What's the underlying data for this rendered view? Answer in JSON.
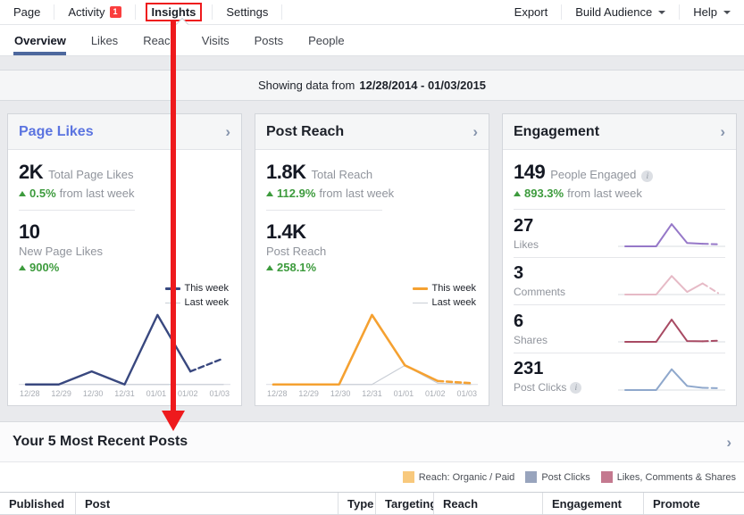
{
  "nav": {
    "items": [
      {
        "label": "Page"
      },
      {
        "label": "Activity",
        "badge": "1"
      },
      {
        "label": "Insights"
      },
      {
        "label": "Settings"
      }
    ],
    "export_label": "Export",
    "build_audience_label": "Build Audience",
    "help_label": "Help"
  },
  "tabs": {
    "items": [
      "Overview",
      "Likes",
      "Reach",
      "Visits",
      "Posts",
      "People"
    ],
    "active": "Overview"
  },
  "date_bar": {
    "prefix": "Showing data from",
    "range": "12/28/2014 - 01/03/2015"
  },
  "cards": {
    "page_likes": {
      "title": "Page Likes",
      "total": {
        "value": "2K",
        "label": "Total Page Likes",
        "delta": "0.5%",
        "delta_suffix": "from last week"
      },
      "secondary": {
        "value": "10",
        "label": "New Page Likes",
        "delta": "900%"
      }
    },
    "post_reach": {
      "title": "Post Reach",
      "total": {
        "value": "1.8K",
        "label": "Total Reach",
        "delta": "112.9%",
        "delta_suffix": "from last week"
      },
      "secondary": {
        "value": "1.4K",
        "label": "Post Reach",
        "delta": "258.1%"
      }
    },
    "engagement": {
      "title": "Engagement",
      "total": {
        "value": "149",
        "label": "People Engaged",
        "delta": "893.3%",
        "delta_suffix": "from last week"
      },
      "rows": [
        {
          "value": "27",
          "label": "Likes"
        },
        {
          "value": "3",
          "label": "Comments"
        },
        {
          "value": "6",
          "label": "Shares"
        },
        {
          "value": "231",
          "label": "Post Clicks"
        }
      ]
    }
  },
  "recent_posts": {
    "title": "Your 5 Most Recent Posts",
    "legend": [
      {
        "label": "Reach: Organic / Paid",
        "color": "#f8c97d"
      },
      {
        "label": "Post Clicks",
        "color": "#98a4bd"
      },
      {
        "label": "Likes, Comments & Shares",
        "color": "#c4798f"
      }
    ],
    "table_headers": [
      "Published",
      "Post",
      "Type",
      "Targeting",
      "Reach",
      "Engagement",
      "Promote"
    ]
  },
  "icons": {
    "chevron_right": "›",
    "info": "i"
  },
  "annotation": {
    "color": "#ee1a1d",
    "boxed_label": "Insights",
    "points_to": "Your 5 Most Recent Posts"
  },
  "colors": {
    "page_bg": "#e9eaed",
    "accent_blue": "#5b74e0",
    "tab_underline": "#4d689e",
    "positive_green": "#3d9b3d",
    "annotation_red": "#ee1a1d"
  },
  "chart_data": [
    {
      "name": "page_likes_week_comparison",
      "type": "line",
      "x": [
        "12/28",
        "12/29",
        "12/30",
        "12/31",
        "01/01",
        "01/02",
        "01/03"
      ],
      "ylim": [
        0,
        9
      ],
      "legend_position": "top-right",
      "grid": false,
      "series": [
        {
          "name": "This week",
          "color": "#39487f",
          "width": 2.4,
          "dash_last_segment": true,
          "values": [
            0,
            0,
            1.5,
            0,
            8,
            1.5,
            3
          ]
        },
        {
          "name": "Last week",
          "color": "#c9ced6",
          "width": 1.2,
          "dash_last_segment": false,
          "values": [
            0,
            0,
            0,
            0,
            0,
            0,
            0
          ]
        }
      ]
    },
    {
      "name": "post_reach_week_comparison",
      "type": "line",
      "x": [
        "12/28",
        "12/29",
        "12/30",
        "12/31",
        "01/01",
        "01/02",
        "01/03"
      ],
      "ylim": [
        0,
        9
      ],
      "legend_position": "top-right",
      "grid": false,
      "series": [
        {
          "name": "This week",
          "color": "#f5a131",
          "width": 2.6,
          "dash_last_segment": true,
          "values": [
            0,
            0,
            0,
            8,
            2.2,
            0.4,
            0.15
          ]
        },
        {
          "name": "Last week",
          "color": "#c9ced6",
          "width": 1.2,
          "dash_last_segment": false,
          "values": [
            0,
            0,
            0,
            0,
            2.2,
            0.15,
            0
          ]
        }
      ]
    },
    {
      "name": "likes_sparkline",
      "type": "line",
      "x": [
        "12/28",
        "12/29",
        "12/30",
        "12/31",
        "01/01",
        "01/02",
        "01/03"
      ],
      "ylim": [
        0,
        6.5
      ],
      "series": [
        {
          "name": "Likes",
          "color": "#9678c8",
          "width": 2,
          "dash_last_segment": true,
          "values": [
            0,
            0,
            0,
            6,
            0.9,
            0.7,
            0.55
          ]
        }
      ]
    },
    {
      "name": "comments_sparkline",
      "type": "line",
      "x": [
        "12/28",
        "12/29",
        "12/30",
        "12/31",
        "01/01",
        "01/02",
        "01/03"
      ],
      "ylim": [
        0,
        6.5
      ],
      "series": [
        {
          "name": "Comments",
          "color": "#e6bac6",
          "width": 2,
          "dash_last_segment": true,
          "values": [
            0,
            0,
            0,
            5,
            0.7,
            3,
            0.4
          ]
        }
      ]
    },
    {
      "name": "shares_sparkline",
      "type": "line",
      "x": [
        "12/28",
        "12/29",
        "12/30",
        "12/31",
        "01/01",
        "01/02",
        "01/03"
      ],
      "ylim": [
        0,
        6.5
      ],
      "series": [
        {
          "name": "Shares",
          "color": "#a84a63",
          "width": 2,
          "dash_last_segment": true,
          "values": [
            0,
            0,
            0,
            6,
            0.2,
            0.15,
            0.3
          ]
        }
      ]
    },
    {
      "name": "post_clicks_sparkline",
      "type": "line",
      "x": [
        "12/28",
        "12/29",
        "12/30",
        "12/31",
        "01/01",
        "01/02",
        "01/03"
      ],
      "ylim": [
        0,
        6.5
      ],
      "series": [
        {
          "name": "Post Clicks",
          "color": "#8fa8cc",
          "width": 2,
          "dash_last_segment": true,
          "values": [
            0,
            0,
            0,
            5.6,
            1.1,
            0.6,
            0.5
          ]
        }
      ]
    }
  ]
}
